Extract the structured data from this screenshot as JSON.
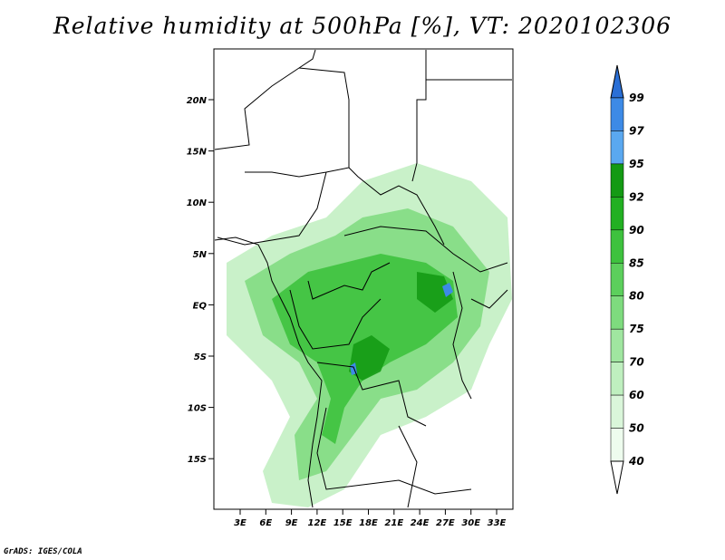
{
  "title": "Relative humidity at 500hPa [%], VT: 2020102306",
  "credit": "GrADS: IGES/COLA",
  "map": {
    "lat_labels": [
      "20N",
      "15N",
      "10N",
      "5N",
      "EQ",
      "5S",
      "10S",
      "15S"
    ],
    "lon_labels": [
      "3E",
      "6E",
      "9E",
      "12E",
      "15E",
      "18E",
      "21E",
      "24E",
      "27E",
      "30E",
      "33E"
    ]
  },
  "colorbar": {
    "labels": [
      "99",
      "97",
      "95",
      "92",
      "90",
      "85",
      "80",
      "75",
      "70",
      "60",
      "50",
      "40"
    ],
    "colors": [
      "#2a6fd6",
      "#3d8ae6",
      "#5aa8f0",
      "#149a14",
      "#22b022",
      "#3ec23e",
      "#5ccf5c",
      "#7edb7e",
      "#a0e6a0",
      "#bfefbf",
      "#daf6da",
      "#eefcee"
    ]
  }
}
